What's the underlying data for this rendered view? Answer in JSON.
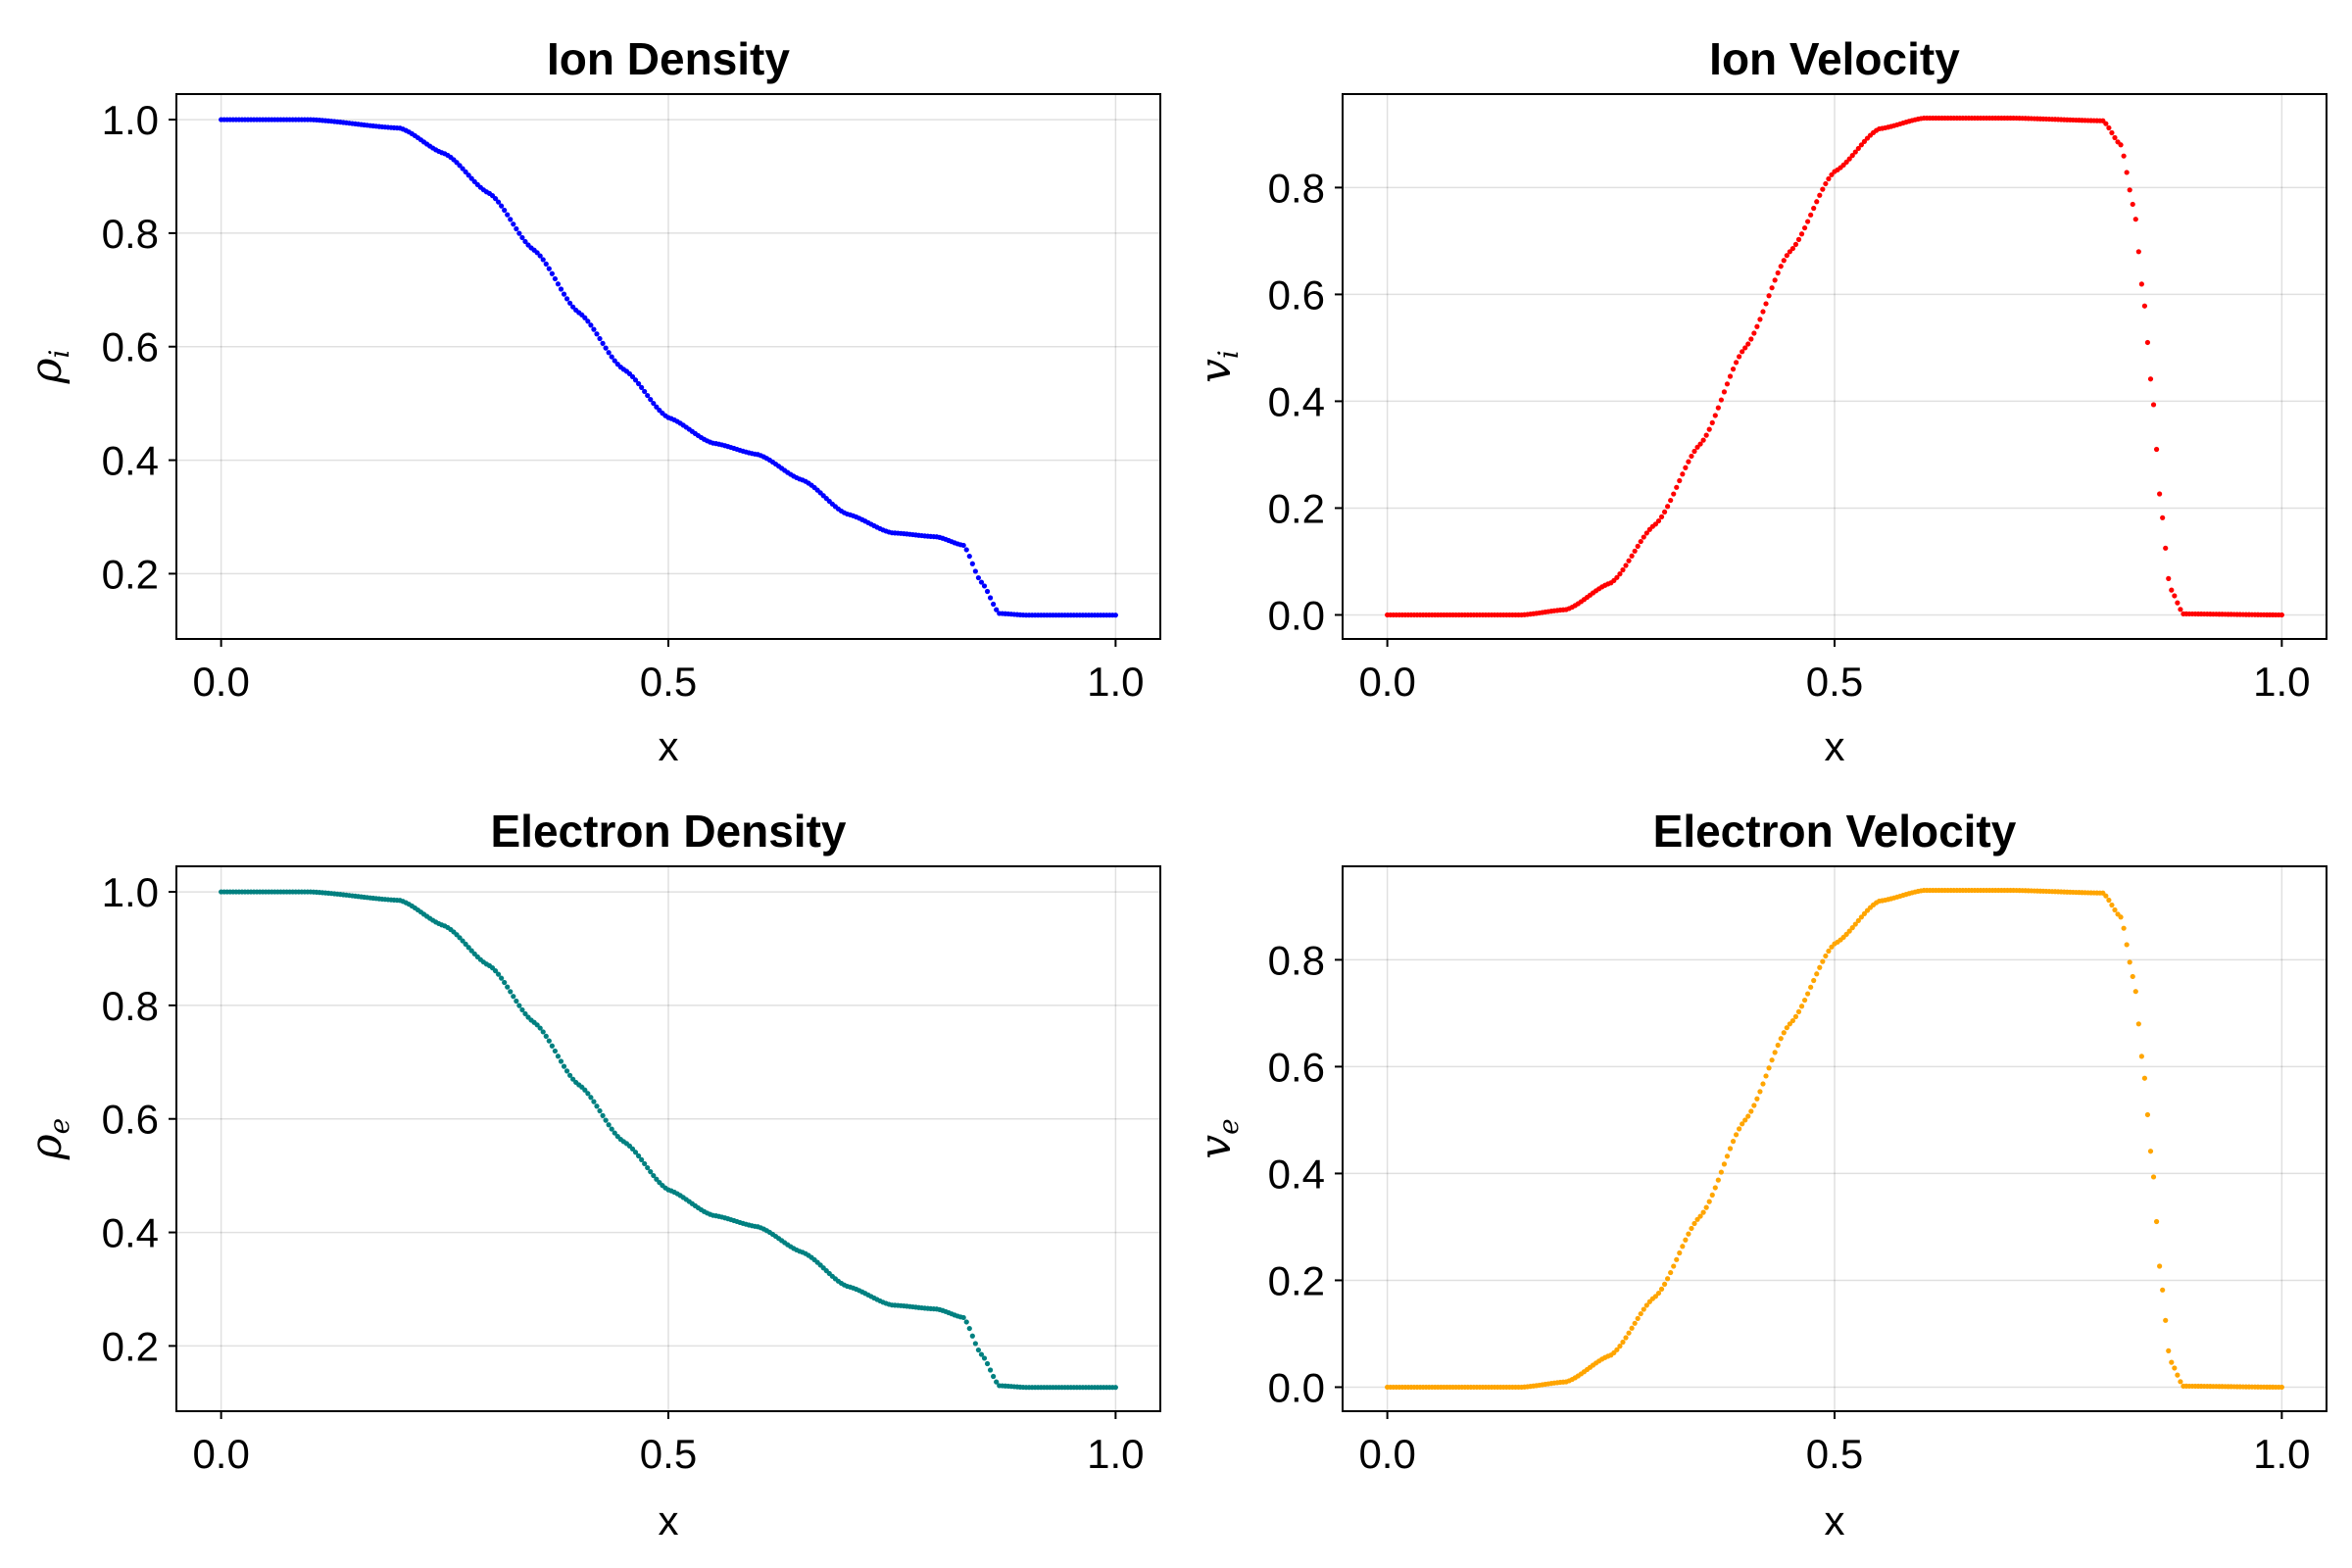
{
  "chart_data": [
    {
      "type": "scatter",
      "title": "Ion Density",
      "xlabel": "x",
      "ylabel": "ρ",
      "ylabel_sub": "i",
      "color": "#0000ff",
      "xlim": [
        -0.05,
        1.05
      ],
      "ylim": [
        0.085,
        1.045
      ],
      "xticks": [
        0.0,
        0.5,
        1.0
      ],
      "xtick_labels": [
        "0.0",
        "0.5",
        "1.0"
      ],
      "yticks": [
        0.2,
        0.4,
        0.6,
        0.8,
        1.0
      ],
      "ytick_labels": [
        "0.2",
        "0.4",
        "0.6",
        "0.8",
        "1.0"
      ],
      "grid": true,
      "n_points": 301,
      "x": [
        0.0,
        0.1,
        0.2,
        0.25,
        0.3,
        0.35,
        0.4,
        0.45,
        0.5,
        0.55,
        0.6,
        0.65,
        0.7,
        0.75,
        0.8,
        0.83,
        0.85,
        0.87,
        0.9,
        1.0
      ],
      "y": [
        1.0,
        1.0,
        0.985,
        0.94,
        0.87,
        0.77,
        0.66,
        0.56,
        0.475,
        0.43,
        0.41,
        0.365,
        0.305,
        0.272,
        0.265,
        0.25,
        0.185,
        0.13,
        0.127,
        0.127
      ]
    },
    {
      "type": "scatter",
      "title": "Ion Velocity",
      "xlabel": "x",
      "ylabel": "v",
      "ylabel_sub": "i",
      "color": "#ff0000",
      "xlim": [
        -0.05,
        1.05
      ],
      "ylim": [
        -0.045,
        0.975
      ],
      "xticks": [
        0.0,
        0.5,
        1.0
      ],
      "xtick_labels": [
        "0.0",
        "0.5",
        "1.0"
      ],
      "yticks": [
        0.0,
        0.2,
        0.4,
        0.6,
        0.8
      ],
      "ytick_labels": [
        "0.0",
        "0.2",
        "0.4",
        "0.6",
        "0.8"
      ],
      "grid": true,
      "n_points": 301,
      "x": [
        0.0,
        0.15,
        0.2,
        0.25,
        0.3,
        0.35,
        0.4,
        0.45,
        0.5,
        0.55,
        0.6,
        0.7,
        0.8,
        0.82,
        0.835,
        0.845,
        0.855,
        0.865,
        0.875,
        0.89,
        1.0
      ],
      "y": [
        0.0,
        0.0,
        0.01,
        0.06,
        0.17,
        0.32,
        0.5,
        0.68,
        0.83,
        0.91,
        0.93,
        0.93,
        0.925,
        0.88,
        0.76,
        0.6,
        0.42,
        0.2,
        0.05,
        0.002,
        0.0
      ]
    },
    {
      "type": "scatter",
      "title": "Electron Density",
      "xlabel": "x",
      "ylabel": "ρ",
      "ylabel_sub": "e",
      "color": "#008080",
      "xlim": [
        -0.05,
        1.05
      ],
      "ylim": [
        0.085,
        1.045
      ],
      "xticks": [
        0.0,
        0.5,
        1.0
      ],
      "xtick_labels": [
        "0.0",
        "0.5",
        "1.0"
      ],
      "yticks": [
        0.2,
        0.4,
        0.6,
        0.8,
        1.0
      ],
      "ytick_labels": [
        "0.2",
        "0.4",
        "0.6",
        "0.8",
        "1.0"
      ],
      "grid": true,
      "n_points": 301,
      "x": [
        0.0,
        0.1,
        0.2,
        0.25,
        0.3,
        0.35,
        0.4,
        0.45,
        0.5,
        0.55,
        0.6,
        0.65,
        0.7,
        0.75,
        0.8,
        0.83,
        0.85,
        0.87,
        0.9,
        1.0
      ],
      "y": [
        1.0,
        1.0,
        0.985,
        0.94,
        0.87,
        0.77,
        0.66,
        0.56,
        0.475,
        0.43,
        0.41,
        0.365,
        0.305,
        0.272,
        0.265,
        0.25,
        0.185,
        0.13,
        0.127,
        0.127
      ]
    },
    {
      "type": "scatter",
      "title": "Electron Velocity",
      "xlabel": "x",
      "ylabel": "v",
      "ylabel_sub": "e",
      "color": "#ffa500",
      "xlim": [
        -0.05,
        1.05
      ],
      "ylim": [
        -0.045,
        0.975
      ],
      "xticks": [
        0.0,
        0.5,
        1.0
      ],
      "xtick_labels": [
        "0.0",
        "0.5",
        "1.0"
      ],
      "yticks": [
        0.0,
        0.2,
        0.4,
        0.6,
        0.8
      ],
      "ytick_labels": [
        "0.0",
        "0.2",
        "0.4",
        "0.6",
        "0.8"
      ],
      "grid": true,
      "n_points": 301,
      "x": [
        0.0,
        0.15,
        0.2,
        0.25,
        0.3,
        0.35,
        0.4,
        0.45,
        0.5,
        0.55,
        0.6,
        0.7,
        0.8,
        0.82,
        0.835,
        0.845,
        0.855,
        0.865,
        0.875,
        0.89,
        1.0
      ],
      "y": [
        0.0,
        0.0,
        0.01,
        0.06,
        0.17,
        0.32,
        0.5,
        0.68,
        0.83,
        0.91,
        0.93,
        0.93,
        0.925,
        0.88,
        0.76,
        0.6,
        0.42,
        0.2,
        0.05,
        0.002,
        0.0
      ]
    }
  ]
}
